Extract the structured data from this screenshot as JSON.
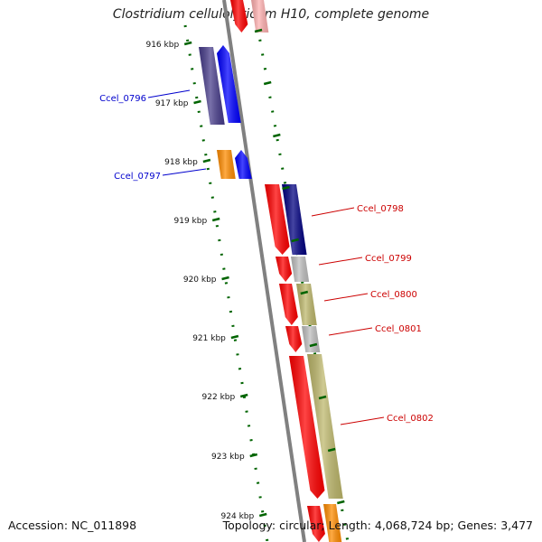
{
  "title": "Clostridium cellulolyticum H10, complete genome",
  "footer": {
    "accession": "Accession: NC_011898",
    "summary": "Topology: circular; Length: 4,068,724 bp; Genes: 3,477"
  },
  "ruler": {
    "ticks": [
      "916 kbp",
      "917 kbp",
      "918 kbp",
      "919 kbp",
      "920 kbp",
      "921 kbp",
      "922 kbp",
      "923 kbp",
      "924 kbp"
    ]
  },
  "gene_labels": {
    "left": [
      "Ccel_0796",
      "Ccel_0797"
    ],
    "right": [
      "Ccel_0798",
      "Ccel_0799",
      "Ccel_0800",
      "Ccel_0801",
      "Ccel_0802"
    ]
  },
  "colors": {
    "red": "#ff0000",
    "blue": "#0000ff",
    "navy": "#000080",
    "slate": "#483d8b",
    "orange": "#ff8c00",
    "olive": "#bdb76b",
    "grey": "#bebebe",
    "backbone": "#808080",
    "tick": "#006400",
    "label_left": "#0000cd",
    "label_right": "#cc0000"
  }
}
